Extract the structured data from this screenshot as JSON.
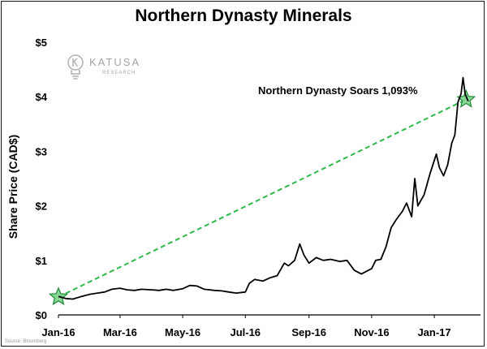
{
  "chart_data": {
    "type": "line",
    "title": "Northern Dynasty Minerals",
    "xlabel": "",
    "ylabel": "Share Price (CAD$)",
    "x_ticks": [
      "Jan-16",
      "Mar-16",
      "May-16",
      "Jul-16",
      "Sep-16",
      "Nov-16",
      "Jan-17"
    ],
    "y_ticks": [
      "$0",
      "$1",
      "$2",
      "$3",
      "$4",
      "$5"
    ],
    "ylim": [
      0,
      5
    ],
    "xlim": [
      "2016-01-01",
      "2017-02-15"
    ],
    "grid": false,
    "series": [
      {
        "color": "#000000",
        "points": [
          [
            "2016-01-01",
            0.34
          ],
          [
            "2016-01-08",
            0.3
          ],
          [
            "2016-01-15",
            0.29
          ],
          [
            "2016-01-22",
            0.33
          ],
          [
            "2016-02-01",
            0.38
          ],
          [
            "2016-02-08",
            0.4
          ],
          [
            "2016-02-15",
            0.42
          ],
          [
            "2016-02-22",
            0.47
          ],
          [
            "2016-03-01",
            0.49
          ],
          [
            "2016-03-08",
            0.46
          ],
          [
            "2016-03-15",
            0.45
          ],
          [
            "2016-03-22",
            0.47
          ],
          [
            "2016-04-01",
            0.46
          ],
          [
            "2016-04-08",
            0.45
          ],
          [
            "2016-04-15",
            0.47
          ],
          [
            "2016-04-22",
            0.45
          ],
          [
            "2016-05-01",
            0.48
          ],
          [
            "2016-05-08",
            0.54
          ],
          [
            "2016-05-15",
            0.53
          ],
          [
            "2016-05-22",
            0.47
          ],
          [
            "2016-06-01",
            0.45
          ],
          [
            "2016-06-08",
            0.44
          ],
          [
            "2016-06-15",
            0.42
          ],
          [
            "2016-06-22",
            0.4
          ],
          [
            "2016-07-01",
            0.42
          ],
          [
            "2016-07-05",
            0.58
          ],
          [
            "2016-07-10",
            0.65
          ],
          [
            "2016-07-18",
            0.62
          ],
          [
            "2016-07-25",
            0.68
          ],
          [
            "2016-08-01",
            0.72
          ],
          [
            "2016-08-08",
            0.95
          ],
          [
            "2016-08-12",
            0.9
          ],
          [
            "2016-08-18",
            1.0
          ],
          [
            "2016-08-23",
            1.3
          ],
          [
            "2016-08-27",
            1.1
          ],
          [
            "2016-09-01",
            0.95
          ],
          [
            "2016-09-08",
            1.05
          ],
          [
            "2016-09-15",
            1.0
          ],
          [
            "2016-09-22",
            1.02
          ],
          [
            "2016-10-01",
            0.98
          ],
          [
            "2016-10-08",
            1.0
          ],
          [
            "2016-10-15",
            0.82
          ],
          [
            "2016-10-22",
            0.75
          ],
          [
            "2016-11-01",
            0.85
          ],
          [
            "2016-11-05",
            1.0
          ],
          [
            "2016-11-10",
            1.02
          ],
          [
            "2016-11-15",
            1.25
          ],
          [
            "2016-11-20",
            1.6
          ],
          [
            "2016-11-25",
            1.75
          ],
          [
            "2016-12-01",
            1.9
          ],
          [
            "2016-12-05",
            2.05
          ],
          [
            "2016-12-10",
            1.8
          ],
          [
            "2016-12-13",
            2.5
          ],
          [
            "2016-12-16",
            2.0
          ],
          [
            "2016-12-22",
            2.2
          ],
          [
            "2016-12-28",
            2.6
          ],
          [
            "2017-01-03",
            2.95
          ],
          [
            "2017-01-06",
            2.7
          ],
          [
            "2017-01-10",
            2.55
          ],
          [
            "2017-01-14",
            2.75
          ],
          [
            "2017-01-18",
            3.15
          ],
          [
            "2017-01-21",
            3.3
          ],
          [
            "2017-01-24",
            3.9
          ],
          [
            "2017-01-27",
            4.05
          ],
          [
            "2017-01-29",
            4.35
          ],
          [
            "2017-01-31",
            4.05
          ],
          [
            "2017-02-03",
            3.92
          ]
        ]
      }
    ],
    "trend_line": {
      "from": [
        "2016-01-01",
        0.33
      ],
      "to": [
        "2017-02-01",
        3.95
      ],
      "color": "#2db84a",
      "style": "dashed",
      "endpoints": "star"
    },
    "annotation": "Northern Dynasty Soars 1,093%"
  },
  "logo": {
    "name": "KATUSA",
    "sub": "RESEARCH"
  },
  "source": "Source: Bloomberg"
}
